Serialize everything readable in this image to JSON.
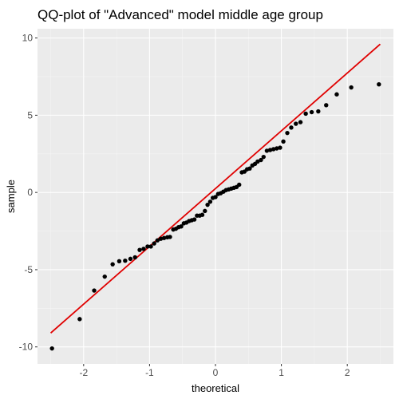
{
  "chart_data": {
    "type": "scatter",
    "title": "QQ-plot of \"Advanced\" model middle age group",
    "xlabel": "theoretical",
    "ylabel": "sample",
    "xlim": [
      -2.7,
      2.7
    ],
    "ylim": [
      -11.1,
      10.6
    ],
    "x_ticks": [
      -2,
      -1,
      0,
      1,
      2
    ],
    "y_ticks": [
      -10,
      -5,
      0,
      5,
      10
    ],
    "x_tick_labels": [
      "-2",
      "-1",
      "0",
      "1",
      "2"
    ],
    "y_tick_labels": [
      "-10",
      "-5",
      "0",
      "5",
      "10"
    ],
    "grid": true,
    "colors": {
      "panel_background": "#ebebeb",
      "grid_major": "#ffffff",
      "grid_minor": "#f5f5f5",
      "points": "#000000",
      "reference_line": "#e00000",
      "axis_text": "#4d4d4d",
      "title_text": "#000000"
    },
    "reference_line": {
      "x": [
        -2.5,
        2.5
      ],
      "y": [
        -9.1,
        9.6
      ]
    },
    "points": [
      {
        "x": -2.48,
        "y": -10.1
      },
      {
        "x": -2.06,
        "y": -8.2
      },
      {
        "x": -1.84,
        "y": -6.35
      },
      {
        "x": -1.68,
        "y": -5.45
      },
      {
        "x": -1.56,
        "y": -4.65
      },
      {
        "x": -1.46,
        "y": -4.45
      },
      {
        "x": -1.37,
        "y": -4.42
      },
      {
        "x": -1.29,
        "y": -4.3
      },
      {
        "x": -1.22,
        "y": -4.2
      },
      {
        "x": -1.15,
        "y": -3.72
      },
      {
        "x": -1.09,
        "y": -3.65
      },
      {
        "x": -1.03,
        "y": -3.5
      },
      {
        "x": -0.98,
        "y": -3.5
      },
      {
        "x": -0.93,
        "y": -3.3
      },
      {
        "x": -0.88,
        "y": -3.1
      },
      {
        "x": -0.83,
        "y": -3.0
      },
      {
        "x": -0.78,
        "y": -2.95
      },
      {
        "x": -0.73,
        "y": -2.9
      },
      {
        "x": -0.69,
        "y": -2.88
      },
      {
        "x": -0.64,
        "y": -2.4
      },
      {
        "x": -0.6,
        "y": -2.35
      },
      {
        "x": -0.56,
        "y": -2.25
      },
      {
        "x": -0.52,
        "y": -2.2
      },
      {
        "x": -0.48,
        "y": -2.0
      },
      {
        "x": -0.44,
        "y": -1.95
      },
      {
        "x": -0.4,
        "y": -1.85
      },
      {
        "x": -0.36,
        "y": -1.8
      },
      {
        "x": -0.32,
        "y": -1.75
      },
      {
        "x": -0.28,
        "y": -1.5
      },
      {
        "x": -0.24,
        "y": -1.5
      },
      {
        "x": -0.2,
        "y": -1.45
      },
      {
        "x": -0.16,
        "y": -1.2
      },
      {
        "x": -0.12,
        "y": -0.8
      },
      {
        "x": -0.08,
        "y": -0.6
      },
      {
        "x": -0.04,
        "y": -0.35
      },
      {
        "x": 0.0,
        "y": -0.3
      },
      {
        "x": 0.04,
        "y": -0.1
      },
      {
        "x": 0.08,
        "y": -0.05
      },
      {
        "x": 0.12,
        "y": 0.05
      },
      {
        "x": 0.16,
        "y": 0.15
      },
      {
        "x": 0.2,
        "y": 0.2
      },
      {
        "x": 0.24,
        "y": 0.25
      },
      {
        "x": 0.28,
        "y": 0.3
      },
      {
        "x": 0.32,
        "y": 0.35
      },
      {
        "x": 0.36,
        "y": 0.5
      },
      {
        "x": 0.4,
        "y": 1.3
      },
      {
        "x": 0.44,
        "y": 1.35
      },
      {
        "x": 0.48,
        "y": 1.5
      },
      {
        "x": 0.52,
        "y": 1.55
      },
      {
        "x": 0.56,
        "y": 1.75
      },
      {
        "x": 0.6,
        "y": 1.85
      },
      {
        "x": 0.64,
        "y": 2.0
      },
      {
        "x": 0.69,
        "y": 2.1
      },
      {
        "x": 0.73,
        "y": 2.3
      },
      {
        "x": 0.78,
        "y": 2.7
      },
      {
        "x": 0.83,
        "y": 2.75
      },
      {
        "x": 0.88,
        "y": 2.8
      },
      {
        "x": 0.93,
        "y": 2.85
      },
      {
        "x": 0.98,
        "y": 2.9
      },
      {
        "x": 1.03,
        "y": 3.3
      },
      {
        "x": 1.09,
        "y": 3.85
      },
      {
        "x": 1.15,
        "y": 4.2
      },
      {
        "x": 1.22,
        "y": 4.45
      },
      {
        "x": 1.29,
        "y": 4.55
      },
      {
        "x": 1.37,
        "y": 5.1
      },
      {
        "x": 1.46,
        "y": 5.2
      },
      {
        "x": 1.56,
        "y": 5.25
      },
      {
        "x": 1.68,
        "y": 5.65
      },
      {
        "x": 1.84,
        "y": 6.35
      },
      {
        "x": 2.06,
        "y": 6.8
      },
      {
        "x": 2.48,
        "y": 7.0
      }
    ]
  }
}
